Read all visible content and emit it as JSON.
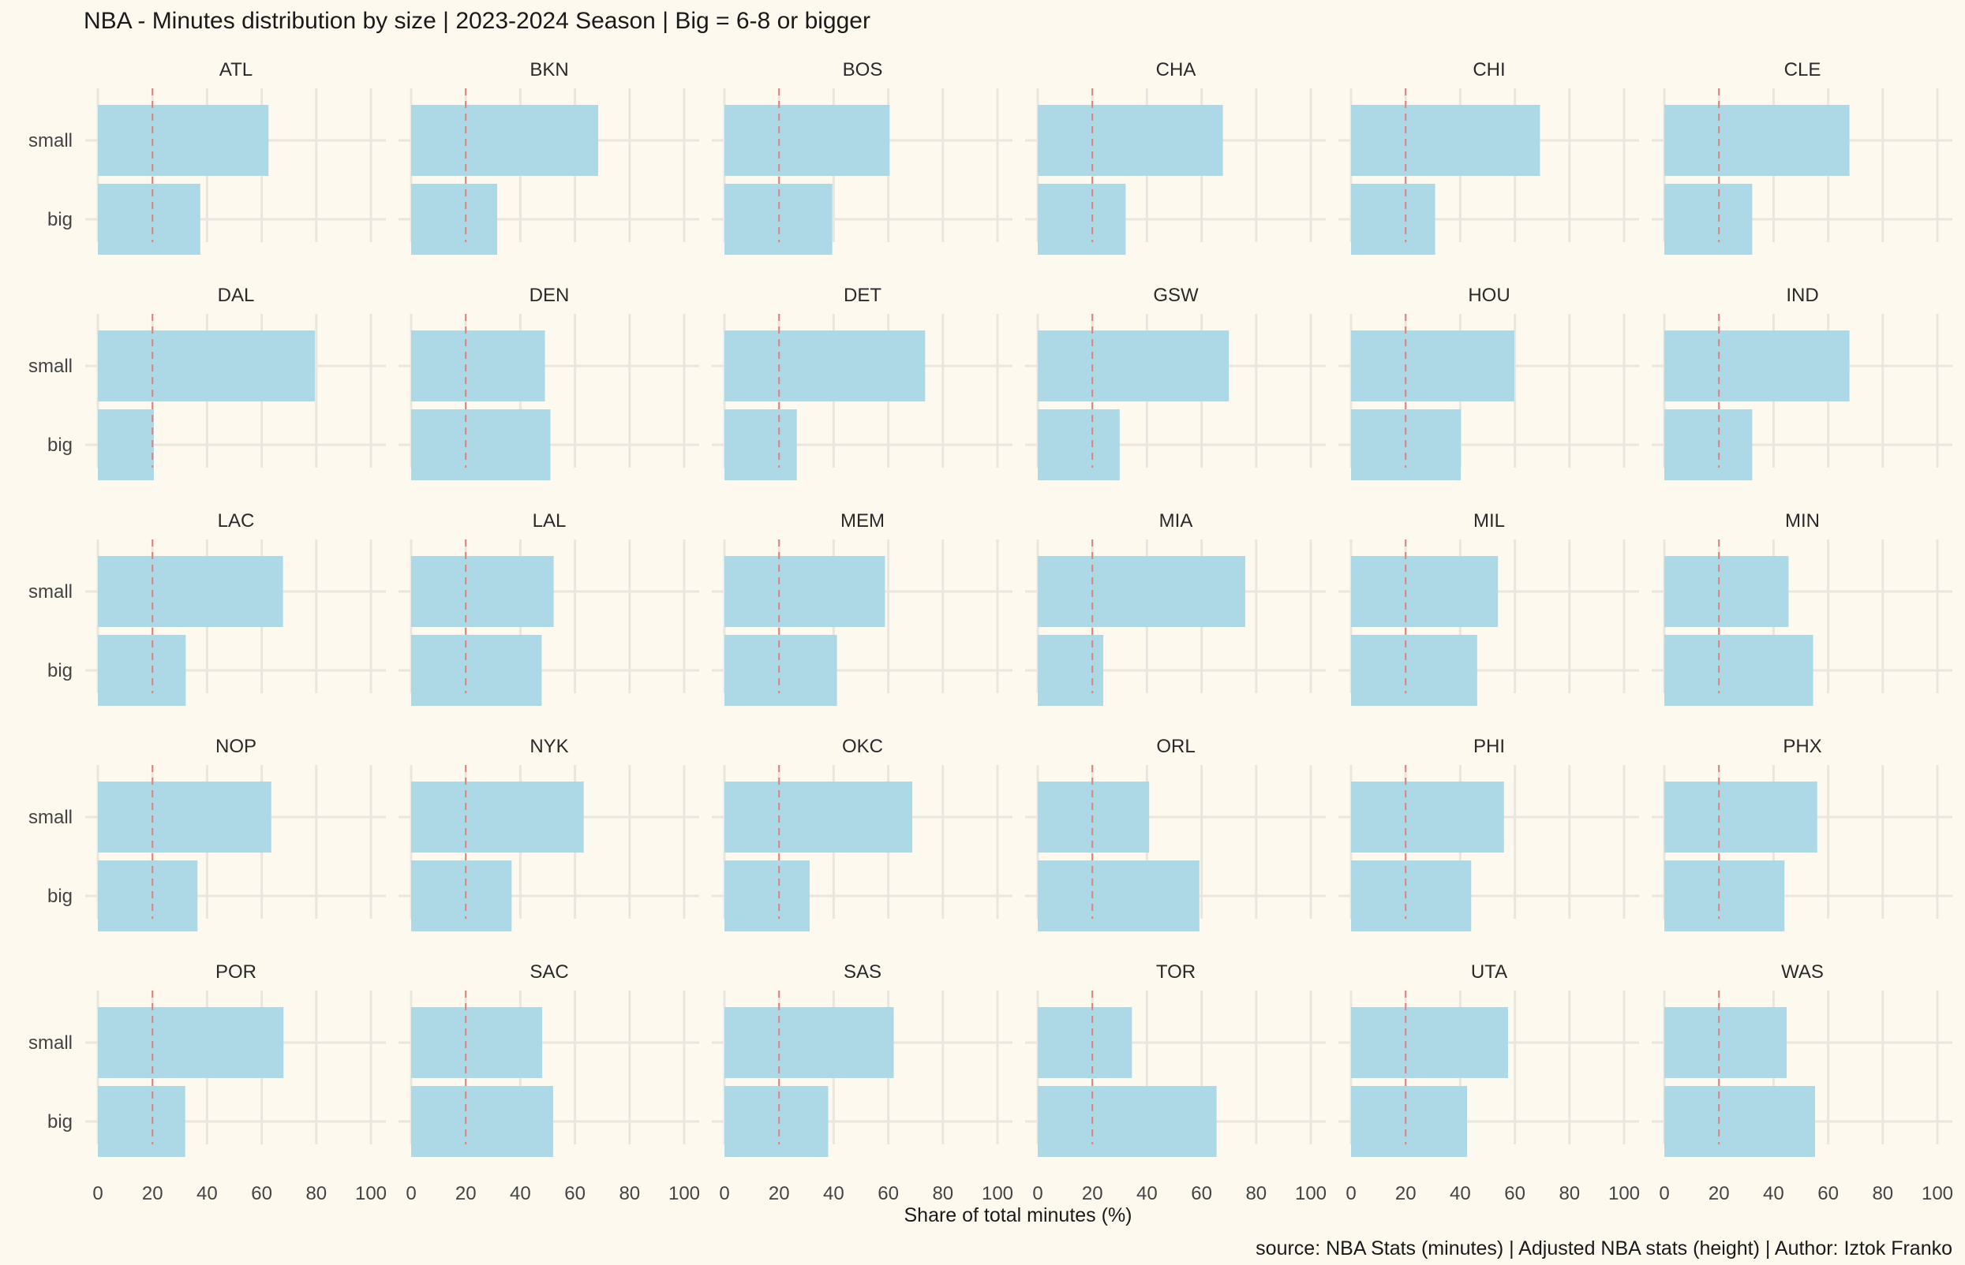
{
  "chart_data": {
    "type": "bar",
    "orientation": "horizontal",
    "facet_layout": "6 columns x 5 rows",
    "title": "NBA - Minutes distribution by size | 2023-2024 Season | Big = 6-8 or bigger",
    "xlabel": "Share of total minutes (%)",
    "caption": "source: NBA Stats (minutes) | Adjusted NBA stats (height) | Author: Iztok Franko",
    "xlim": [
      0,
      100
    ],
    "xticks": [
      "0",
      "20",
      "40",
      "60",
      "80",
      "100"
    ],
    "categories": [
      "small",
      "big"
    ],
    "reference_line": 20,
    "grid": true,
    "bar_color": "#add8e6",
    "reference_line_color": "#d9847f",
    "background_color": "#fdf9ef",
    "panels": [
      {
        "team": "ATL",
        "small": 62.5,
        "big": 37.5
      },
      {
        "team": "BKN",
        "small": 68.5,
        "big": 31.5
      },
      {
        "team": "BOS",
        "small": 60.5,
        "big": 39.5
      },
      {
        "team": "CHA",
        "small": 67.8,
        "big": 32.2
      },
      {
        "team": "CHI",
        "small": 69.2,
        "big": 30.8
      },
      {
        "team": "CLE",
        "small": 67.8,
        "big": 32.2
      },
      {
        "team": "DAL",
        "small": 79.5,
        "big": 20.5
      },
      {
        "team": "DEN",
        "small": 49.0,
        "big": 51.0
      },
      {
        "team": "DET",
        "small": 73.5,
        "big": 26.5
      },
      {
        "team": "GSW",
        "small": 70.0,
        "big": 30.0
      },
      {
        "team": "HOU",
        "small": 59.8,
        "big": 40.2
      },
      {
        "team": "IND",
        "small": 67.8,
        "big": 32.2
      },
      {
        "team": "LAC",
        "small": 67.8,
        "big": 32.2
      },
      {
        "team": "LAL",
        "small": 52.2,
        "big": 47.8
      },
      {
        "team": "MEM",
        "small": 58.8,
        "big": 41.2
      },
      {
        "team": "MIA",
        "small": 76.0,
        "big": 24.0
      },
      {
        "team": "MIL",
        "small": 53.8,
        "big": 46.2
      },
      {
        "team": "MIN",
        "small": 45.5,
        "big": 54.5
      },
      {
        "team": "NOP",
        "small": 63.5,
        "big": 36.5
      },
      {
        "team": "NYK",
        "small": 63.2,
        "big": 36.8
      },
      {
        "team": "OKC",
        "small": 68.8,
        "big": 31.2
      },
      {
        "team": "ORL",
        "small": 40.8,
        "big": 59.2
      },
      {
        "team": "PHI",
        "small": 56.0,
        "big": 44.0
      },
      {
        "team": "PHX",
        "small": 56.0,
        "big": 44.0
      },
      {
        "team": "POR",
        "small": 68.0,
        "big": 32.0
      },
      {
        "team": "SAC",
        "small": 48.0,
        "big": 52.0
      },
      {
        "team": "SAS",
        "small": 62.0,
        "big": 38.0
      },
      {
        "team": "TOR",
        "small": 34.5,
        "big": 65.5
      },
      {
        "team": "UTA",
        "small": 57.5,
        "big": 42.5
      },
      {
        "team": "WAS",
        "small": 44.8,
        "big": 55.2
      }
    ]
  }
}
